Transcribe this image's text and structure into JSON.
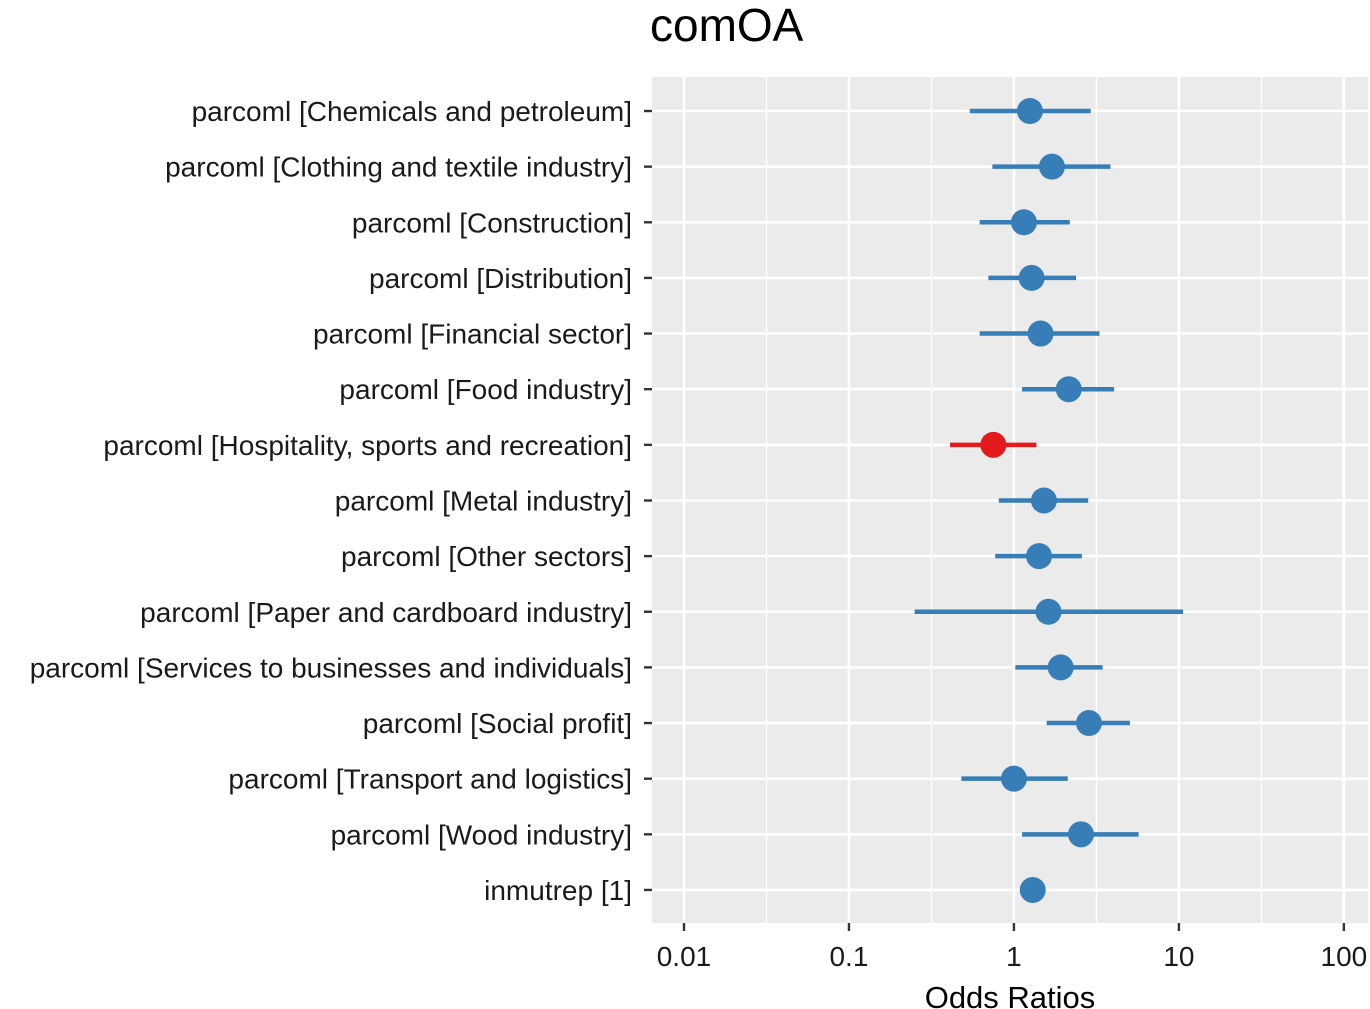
{
  "chart_data": {
    "type": "scatter",
    "subtype": "forest-plot",
    "title": "comOA",
    "xlabel": "Odds Ratios",
    "ylabel": "",
    "x_scale": "log10",
    "xlim": [
      0.0064,
      140
    ],
    "x_ticks": [
      0.01,
      0.1,
      1,
      10,
      100
    ],
    "x_tick_labels": [
      "0.01",
      "0.1",
      "1",
      "10",
      "100"
    ],
    "grid": true,
    "legend": "none",
    "colors": {
      "positive": "#377eb8",
      "negative": "#e41a1c",
      "panel": "#ebebeb",
      "grid": "#ffffff"
    },
    "terms": [
      {
        "label": "parcoml [Chemicals and petroleum]",
        "estimate": 1.25,
        "ci_low": 0.54,
        "ci_high": 2.92,
        "color": "#377eb8"
      },
      {
        "label": "parcoml [Clothing and textile industry]",
        "estimate": 1.7,
        "ci_low": 0.74,
        "ci_high": 3.85,
        "color": "#377eb8"
      },
      {
        "label": "parcoml [Construction]",
        "estimate": 1.15,
        "ci_low": 0.62,
        "ci_high": 2.18,
        "color": "#377eb8"
      },
      {
        "label": "parcoml [Distribution]",
        "estimate": 1.28,
        "ci_low": 0.7,
        "ci_high": 2.38,
        "color": "#377eb8"
      },
      {
        "label": "parcoml [Financial sector]",
        "estimate": 1.45,
        "ci_low": 0.62,
        "ci_high": 3.3,
        "color": "#377eb8"
      },
      {
        "label": "parcoml [Food industry]",
        "estimate": 2.15,
        "ci_low": 1.12,
        "ci_high": 4.05,
        "color": "#377eb8"
      },
      {
        "label": "parcoml [Hospitality, sports and recreation]",
        "estimate": 0.75,
        "ci_low": 0.41,
        "ci_high": 1.37,
        "color": "#e41a1c"
      },
      {
        "label": "parcoml [Metal industry]",
        "estimate": 1.52,
        "ci_low": 0.81,
        "ci_high": 2.82,
        "color": "#377eb8"
      },
      {
        "label": "parcoml [Other sectors]",
        "estimate": 1.42,
        "ci_low": 0.77,
        "ci_high": 2.58,
        "color": "#377eb8"
      },
      {
        "label": "parcoml [Paper and cardboard industry]",
        "estimate": 1.62,
        "ci_low": 0.25,
        "ci_high": 10.6,
        "color": "#377eb8"
      },
      {
        "label": "parcoml [Services to businesses and individuals]",
        "estimate": 1.92,
        "ci_low": 1.02,
        "ci_high": 3.45,
        "color": "#377eb8"
      },
      {
        "label": "parcoml [Social profit]",
        "estimate": 2.85,
        "ci_low": 1.58,
        "ci_high": 5.05,
        "color": "#377eb8"
      },
      {
        "label": "parcoml [Transport and logistics]",
        "estimate": 1.0,
        "ci_low": 0.48,
        "ci_high": 2.12,
        "color": "#377eb8"
      },
      {
        "label": "parcoml [Wood industry]",
        "estimate": 2.55,
        "ci_low": 1.12,
        "ci_high": 5.7,
        "color": "#377eb8"
      },
      {
        "label": "inmutrep [1]",
        "estimate": 1.3,
        "ci_low": null,
        "ci_high": null,
        "color": "#377eb8"
      }
    ]
  }
}
